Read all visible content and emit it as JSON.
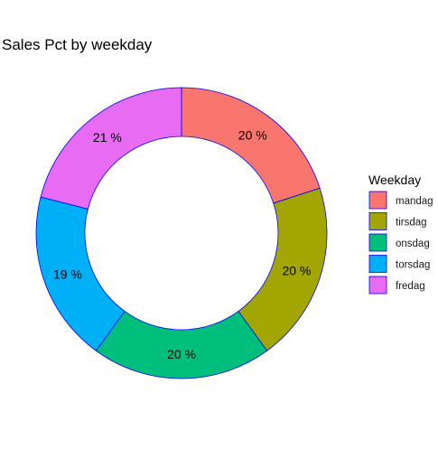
{
  "chart_data": {
    "type": "pie",
    "variant": "donut",
    "title": "Sales Pct by weekday",
    "legend_title": "Weekday",
    "legend_position": "right",
    "categories": [
      "mandag",
      "tirsdag",
      "onsdag",
      "torsdag",
      "fredag"
    ],
    "values": [
      20,
      20,
      20,
      19,
      21
    ],
    "labels": [
      "20 %",
      "20 %",
      "20 %",
      "19 %",
      "21 %"
    ],
    "colors": [
      "#F8766D",
      "#A3A500",
      "#00BF7D",
      "#00B0F6",
      "#E76BF3"
    ],
    "outline_color": "#0000FF",
    "start": "12 o'clock",
    "direction": "clockwise"
  }
}
